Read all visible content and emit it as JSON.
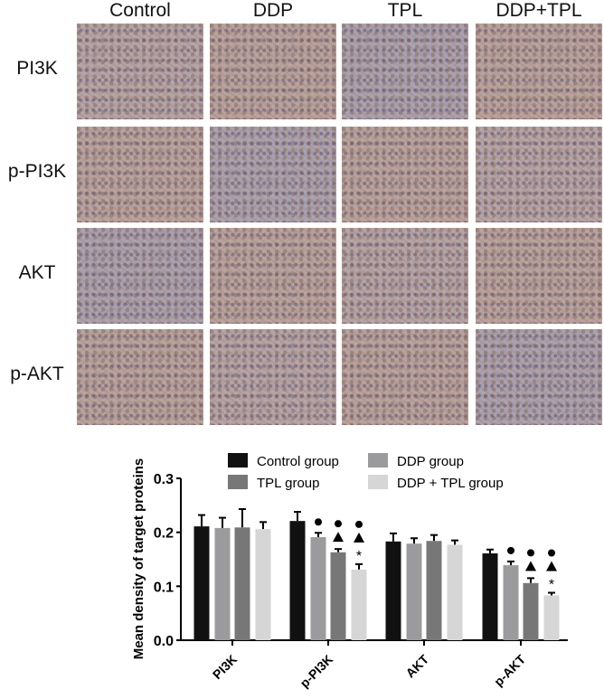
{
  "panel_a": {
    "columns": [
      "Control",
      "DDP",
      "TPL",
      "DDP+TPL"
    ],
    "rows": [
      "PI3K",
      "p-PI3K",
      "AKT",
      "p-AKT"
    ]
  },
  "chart_data": {
    "type": "bar",
    "title": "",
    "xlabel": "",
    "ylabel": "Mean density of target proteins",
    "ylim": [
      0,
      0.3
    ],
    "yticks": [
      "0.0",
      "0.1",
      "0.2",
      "0.3"
    ],
    "categories": [
      "PI3K",
      "p-PI3K",
      "AKT",
      "p-AKT"
    ],
    "legend_position": "top",
    "series": [
      {
        "name": "Control group",
        "color": "#111111",
        "values": [
          0.211,
          0.221,
          0.183,
          0.161
        ],
        "errors": [
          0.021,
          0.017,
          0.015,
          0.007
        ]
      },
      {
        "name": "DDP group",
        "color": "#9b9b9d",
        "values": [
          0.208,
          0.191,
          0.179,
          0.139
        ],
        "errors": [
          0.019,
          0.008,
          0.01,
          0.007
        ]
      },
      {
        "name": "TPL group",
        "color": "#777777",
        "values": [
          0.209,
          0.163,
          0.184,
          0.106
        ],
        "errors": [
          0.034,
          0.006,
          0.011,
          0.009
        ]
      },
      {
        "name": "DDP + TPL group",
        "color": "#d6d6d6",
        "values": [
          0.206,
          0.131,
          0.177,
          0.083
        ],
        "errors": [
          0.013,
          0.01,
          0.008,
          0.005
        ]
      }
    ],
    "annotations": [
      {
        "category": "p-PI3K",
        "series": "DDP group",
        "marks": [
          "circle"
        ]
      },
      {
        "category": "p-PI3K",
        "series": "TPL group",
        "marks": [
          "triangle",
          "circle"
        ]
      },
      {
        "category": "p-PI3K",
        "series": "DDP + TPL group",
        "marks": [
          "*",
          "triangle",
          "circle"
        ]
      },
      {
        "category": "p-AKT",
        "series": "DDP group",
        "marks": [
          "circle"
        ]
      },
      {
        "category": "p-AKT",
        "series": "TPL group",
        "marks": [
          "triangle",
          "circle"
        ]
      },
      {
        "category": "p-AKT",
        "series": "DDP + TPL group",
        "marks": [
          "*",
          "triangle",
          "circle"
        ]
      }
    ]
  }
}
